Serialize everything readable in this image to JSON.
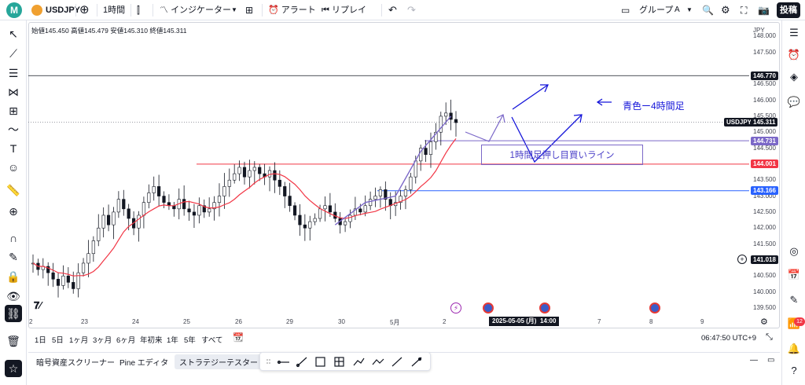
{
  "topbar": {
    "avatar": "M",
    "symbol": "USDJPY",
    "interval": "1時間",
    "indicators": "インジケーター",
    "alert": "アラート",
    "replay": "リプレイ",
    "group": "グループ",
    "group_letter": "A",
    "post": "投稿"
  },
  "ohlc": {
    "open_label": "始値",
    "open": "145.450",
    "high_label": "高値",
    "high": "145.479",
    "low_label": "安値",
    "low": "145.310",
    "close_label": "終値",
    "close": "145.311"
  },
  "currency": "JPY",
  "y_ticks": [
    "148.000",
    "147.500",
    "146.500",
    "146.000",
    "145.500",
    "145.000",
    "144.500",
    "143.500",
    "143.000",
    "142.500",
    "142.000",
    "141.500",
    "140.500",
    "140.000",
    "139.500"
  ],
  "x_ticks": [
    "2",
    "23",
    "24",
    "25",
    "26",
    "29",
    "30",
    "5月",
    "2",
    "7",
    "8",
    "9"
  ],
  "crosshair_date": "2025-05-05 (月)",
  "crosshair_time": "14:00",
  "price_tags": [
    {
      "label": "146.770",
      "color": "#131722",
      "value": 146.77
    },
    {
      "label": "USDJPY",
      "color": "#131722",
      "value": 145.311
    },
    {
      "label": "145.311",
      "color": "#131722",
      "value": 145.311
    },
    {
      "label": "144.731",
      "color": "#7b68c8",
      "value": 144.731
    },
    {
      "label": "144.001",
      "color": "#f23645",
      "value": 144.001
    },
    {
      "label": "143.166",
      "color": "#2962ff",
      "value": 143.166
    },
    {
      "label": "141.018",
      "color": "#131722",
      "value": 141.018
    }
  ],
  "annotations": {
    "blue_4h": "青色ー4時間足",
    "buy_line": "1時間足押し目買いライン"
  },
  "ranges": [
    "1日",
    "5日",
    "1ヶ月",
    "3ヶ月",
    "6ヶ月",
    "年初来",
    "1年",
    "5年",
    "すべて"
  ],
  "clock": "06:47:50 UTC+9",
  "bottom_tabs": [
    "暗号資産スクリーナー",
    "Pine エディタ",
    "ストラテジーテスター"
  ],
  "notification_count": "12",
  "colors": {
    "up": "#131722",
    "ma": "#f23645",
    "blue_line": "#2962ff",
    "purple": "#7b68c8",
    "annotation": "#1515d9"
  },
  "chart_data": {
    "type": "candlestick",
    "symbol": "USDJPY",
    "interval": "1h",
    "ylim": [
      139.3,
      148.4
    ],
    "close_series": [
      140.9,
      140.7,
      140.8,
      140.6,
      140.4,
      140.2,
      140.5,
      140.3,
      140.1,
      140.6,
      140.9,
      141.2,
      141.6,
      142.0,
      142.4,
      142.1,
      142.5,
      142.9,
      142.6,
      142.3,
      142.0,
      142.4,
      142.8,
      143.1,
      143.3,
      143.0,
      142.8,
      142.7,
      142.6,
      142.9,
      142.6,
      142.5,
      142.4,
      142.7,
      142.5,
      142.6,
      142.8,
      143.0,
      143.3,
      143.5,
      143.7,
      143.9,
      143.6,
      143.8,
      143.9,
      143.7,
      143.6,
      143.8,
      143.5,
      143.3,
      143.0,
      142.7,
      142.4,
      142.1,
      142.0,
      142.2,
      142.3,
      142.6,
      142.7,
      142.5,
      142.3,
      142.1,
      142.2,
      142.4,
      142.6,
      142.5,
      142.7,
      142.9,
      143.0,
      143.2,
      142.9,
      142.7,
      142.8,
      143.0,
      143.2,
      143.6,
      144.1,
      144.5,
      144.3,
      144.7,
      145.0,
      145.5,
      145.6,
      145.4,
      145.3
    ]
  }
}
